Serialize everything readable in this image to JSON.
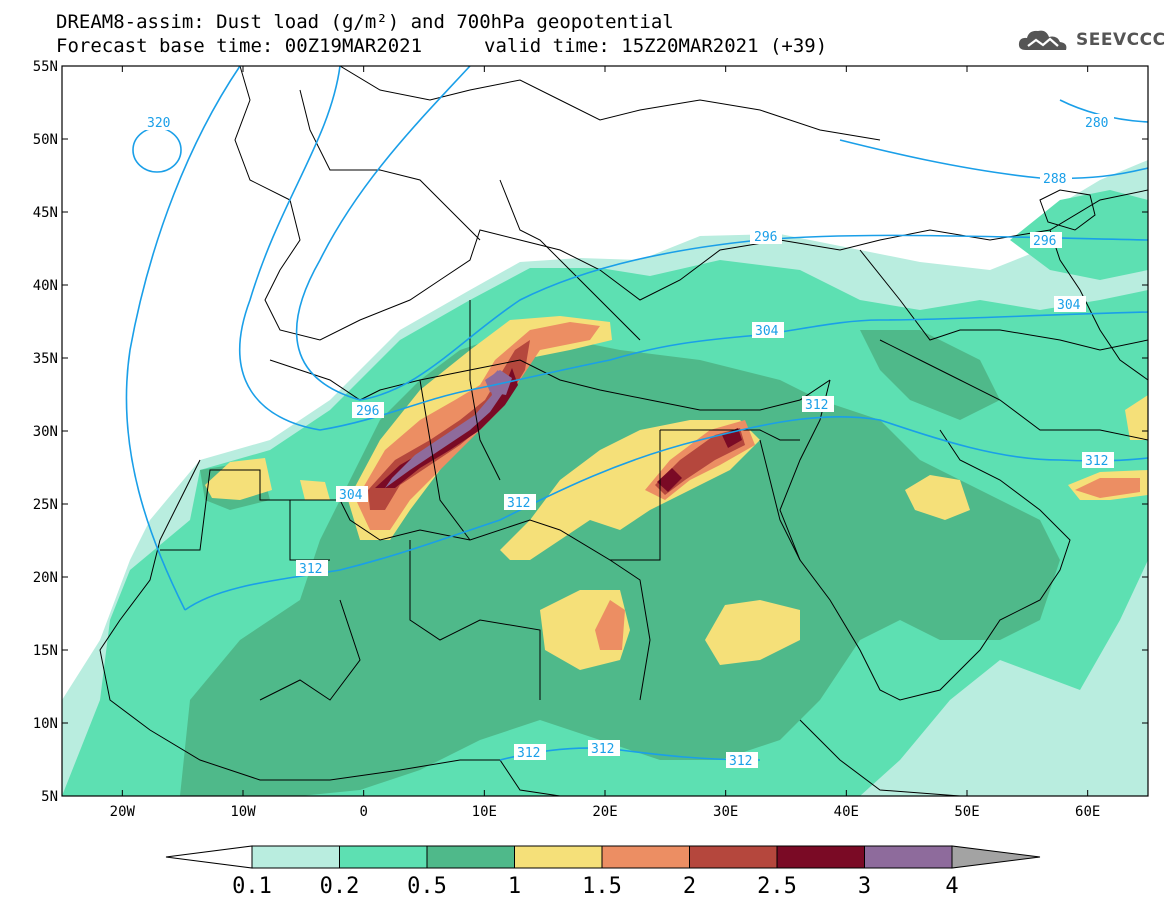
{
  "title": {
    "line1": "DREAM8-assim: Dust load (g/m²) and 700hPa geopotential",
    "base_time": "Forecast base time: 00Z19MAR2021",
    "valid_time": "valid time: 15Z20MAR2021 (+39)"
  },
  "logo": {
    "text": "SEEVCCC",
    "icon": "cloud-logo-icon"
  },
  "map": {
    "lat_labels": [
      "55N",
      "50N",
      "45N",
      "40N",
      "35N",
      "30N",
      "25N",
      "20N",
      "15N",
      "10N",
      "5N"
    ],
    "lon_labels": [
      "20W",
      "10W",
      "0",
      "10E",
      "20E",
      "30E",
      "40E",
      "50E",
      "60E"
    ],
    "lat_range": [
      5,
      55
    ],
    "lon_range": [
      -25,
      65
    ]
  },
  "contours": [
    {
      "label": "320"
    },
    {
      "label": "296"
    },
    {
      "label": "304"
    },
    {
      "label": "312"
    },
    {
      "label": "288"
    },
    {
      "label": "280"
    }
  ],
  "colorbar": {
    "labels": [
      "0.1",
      "0.2",
      "0.5",
      "1",
      "1.5",
      "2",
      "2.5",
      "3",
      "4"
    ],
    "colors": [
      "#b9eddf",
      "#5de0b2",
      "#4fb98a",
      "#f5e079",
      "#ec8e63",
      "#b5473d",
      "#7a0a25",
      "#8e6b9c",
      "#a3a3a3"
    ]
  }
}
